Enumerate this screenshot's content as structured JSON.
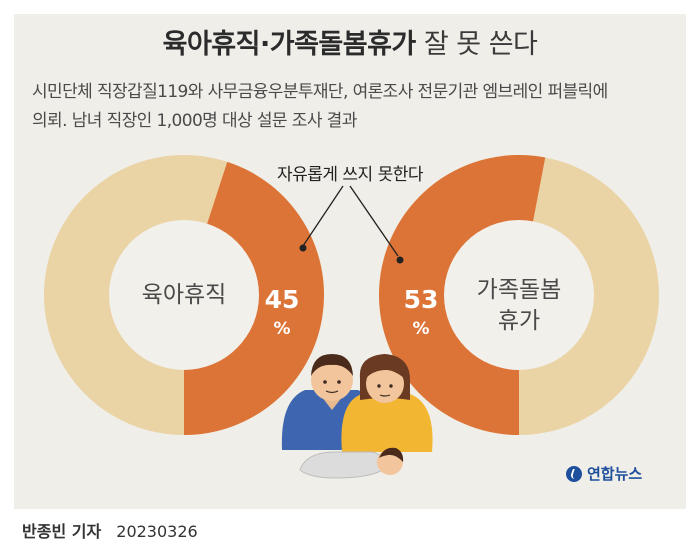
{
  "title": {
    "bold": "육아휴직·가족돌봄휴가",
    "light": " 잘 못 쓴다"
  },
  "subtitle": {
    "line1": "시민단체 직장갑질119와 사무금융우분투재단, 여론조사 전문기관 엠브레인 퍼블릭에",
    "line2": "의뢰. 남녀 직장인 1,000명 대상 설문 조사 결과"
  },
  "annotation": "자유롭게 쓰지 못한다",
  "colors": {
    "accent": "#dd7437",
    "base": "#ead3a5",
    "hole": "#f2f0eb",
    "panel": "#f0eee8"
  },
  "chart_data": [
    {
      "type": "pie",
      "label": "육아휴직",
      "value": 45,
      "value_text": "45",
      "unit": "%",
      "slices": [
        {
          "name": "자유롭게 쓰지 못한다",
          "value": 45
        },
        {
          "name": "",
          "value": 55
        }
      ]
    },
    {
      "type": "pie",
      "label_lines": [
        "가족돌봄",
        "휴가"
      ],
      "value": 53,
      "value_text": "53",
      "unit": "%",
      "slices": [
        {
          "name": "자유롭게 쓰지 못한다",
          "value": 53
        },
        {
          "name": "",
          "value": 47
        }
      ]
    }
  ],
  "footer": {
    "name": "반종빈 기자",
    "date": "20230326"
  },
  "logo": {
    "text": "연합뉴스"
  }
}
